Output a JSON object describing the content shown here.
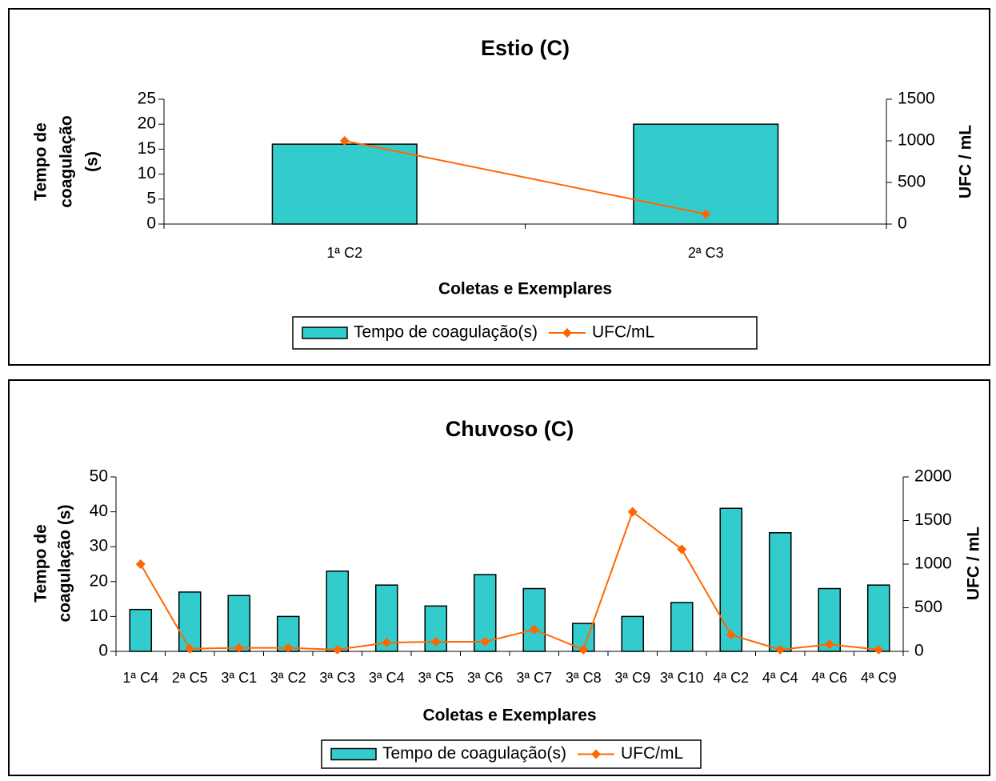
{
  "colors": {
    "bar_fill": "#33CCCC",
    "bar_stroke": "#000000",
    "line": "#FF6600",
    "marker": "#FF6600"
  },
  "chart_data": [
    {
      "type": "bar",
      "title": "Estio (C)",
      "xlabel": "Coletas e Exemplares",
      "ylabel_lines": [
        "Tempo de",
        "coagulação",
        "(s)"
      ],
      "y2label": "UFC / mL",
      "categories": [
        "1ª C2",
        "2ª C3"
      ],
      "ylim": [
        0,
        25
      ],
      "yticks": [
        0,
        5,
        10,
        15,
        20,
        25
      ],
      "y2lim": [
        0,
        1500
      ],
      "y2ticks": [
        0,
        500,
        1000,
        1500
      ],
      "legend_placement": "bottom",
      "series": [
        {
          "name": "Tempo de coagulação(s)",
          "kind": "bar",
          "axis": "left",
          "values": [
            16,
            20
          ]
        },
        {
          "name": "UFC/mL",
          "kind": "line",
          "axis": "right",
          "values": [
            1000,
            120
          ]
        }
      ]
    },
    {
      "type": "bar",
      "title": "Chuvoso (C)",
      "xlabel": "Coletas e Exemplares",
      "ylabel_lines": [
        "Tempo de",
        "coagulação (s)"
      ],
      "y2label": "UFC / mL",
      "categories": [
        "1ª C4",
        "2ª C5",
        "3ª C1",
        "3ª C2",
        "3ª C3",
        "3ª C4",
        "3ª C5",
        "3ª C6",
        "3ª C7",
        "3ª C8",
        "3ª C9",
        "3ª C10",
        "4ª C2",
        "4ª C4",
        "4ª C6",
        "4ª C9"
      ],
      "ylim": [
        0,
        50
      ],
      "yticks": [
        0,
        10,
        20,
        30,
        40,
        50
      ],
      "y2lim": [
        0,
        2000
      ],
      "y2ticks": [
        0,
        500,
        1000,
        1500,
        2000
      ],
      "legend_placement": "bottom",
      "series": [
        {
          "name": "Tempo de coagulação(s)",
          "kind": "bar",
          "axis": "left",
          "values": [
            12,
            17,
            16,
            10,
            23,
            19,
            13,
            22,
            18,
            8,
            10,
            14,
            41,
            34,
            18,
            19
          ]
        },
        {
          "name": "UFC/mL",
          "kind": "line",
          "axis": "right",
          "values": [
            1000,
            30,
            40,
            40,
            20,
            100,
            110,
            110,
            250,
            20,
            1600,
            1170,
            190,
            20,
            80,
            20
          ]
        }
      ]
    }
  ]
}
